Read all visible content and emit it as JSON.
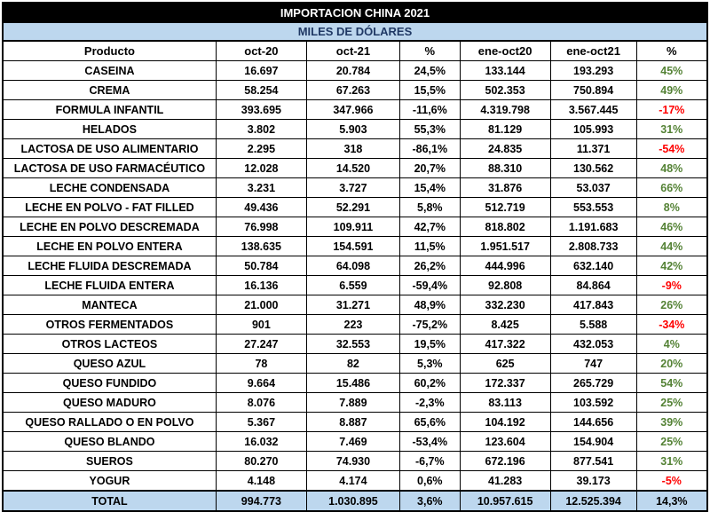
{
  "title": "IMPORTACION CHINA 2021",
  "subtitle": "MILES DE DÓLARES",
  "colors": {
    "title_bg": "#000000",
    "title_text": "#FFFFFF",
    "subtitle_bg": "#BDD7EE",
    "total_bg": "#BDD7EE",
    "positive_pct": "#548235",
    "negative_pct": "#FF0000"
  },
  "chart_data": {
    "type": "table",
    "title": "IMPORTACION CHINA 2021",
    "subtitle": "MILES DE DÓLARES",
    "columns": [
      "Producto",
      "oct-20",
      "oct-21",
      "%",
      "ene-oct20",
      "ene-oct21",
      "%"
    ],
    "rows": [
      [
        "CASEINA",
        "16.697",
        "20.784",
        "24,5%",
        "133.144",
        "193.293",
        "45%"
      ],
      [
        "CREMA",
        "58.254",
        "67.263",
        "15,5%",
        "502.353",
        "750.894",
        "49%"
      ],
      [
        "FORMULA INFANTIL",
        "393.695",
        "347.966",
        "-11,6%",
        "4.319.798",
        "3.567.445",
        "-17%"
      ],
      [
        "HELADOS",
        "3.802",
        "5.903",
        "55,3%",
        "81.129",
        "105.993",
        "31%"
      ],
      [
        "LACTOSA DE USO ALIMENTARIO",
        "2.295",
        "318",
        "-86,1%",
        "24.835",
        "11.371",
        "-54%"
      ],
      [
        "LACTOSA DE USO FARMACÉUTICO",
        "12.028",
        "14.520",
        "20,7%",
        "88.310",
        "130.562",
        "48%"
      ],
      [
        "LECHE CONDENSADA",
        "3.231",
        "3.727",
        "15,4%",
        "31.876",
        "53.037",
        "66%"
      ],
      [
        "LECHE EN POLVO - FAT FILLED",
        "49.436",
        "52.291",
        "5,8%",
        "512.719",
        "553.553",
        "8%"
      ],
      [
        "LECHE EN POLVO DESCREMADA",
        "76.998",
        "109.911",
        "42,7%",
        "818.802",
        "1.191.683",
        "46%"
      ],
      [
        "LECHE EN POLVO ENTERA",
        "138.635",
        "154.591",
        "11,5%",
        "1.951.517",
        "2.808.733",
        "44%"
      ],
      [
        "LECHE FLUIDA DESCREMADA",
        "50.784",
        "64.098",
        "26,2%",
        "444.996",
        "632.140",
        "42%"
      ],
      [
        "LECHE FLUIDA ENTERA",
        "16.136",
        "6.559",
        "-59,4%",
        "92.808",
        "84.864",
        "-9%"
      ],
      [
        "MANTECA",
        "21.000",
        "31.271",
        "48,9%",
        "332.230",
        "417.843",
        "26%"
      ],
      [
        "OTROS FERMENTADOS",
        "901",
        "223",
        "-75,2%",
        "8.425",
        "5.588",
        "-34%"
      ],
      [
        "OTROS LACTEOS",
        "27.247",
        "32.553",
        "19,5%",
        "417.322",
        "432.053",
        "4%"
      ],
      [
        "QUESO AZUL",
        "78",
        "82",
        "5,3%",
        "625",
        "747",
        "20%"
      ],
      [
        "QUESO FUNDIDO",
        "9.664",
        "15.486",
        "60,2%",
        "172.337",
        "265.729",
        "54%"
      ],
      [
        "QUESO MADURO",
        "8.076",
        "7.889",
        "-2,3%",
        "83.113",
        "103.592",
        "25%"
      ],
      [
        "QUESO RALLADO O EN POLVO",
        "5.367",
        "8.887",
        "65,6%",
        "104.192",
        "144.656",
        "39%"
      ],
      [
        "QUESO BLANDO",
        "16.032",
        "7.469",
        "-53,4%",
        "123.604",
        "154.904",
        "25%"
      ],
      [
        "SUEROS",
        "80.270",
        "74.930",
        "-6,7%",
        "672.196",
        "877.541",
        "31%"
      ],
      [
        "YOGUR",
        "4.148",
        "4.174",
        "0,6%",
        "41.283",
        "39.173",
        "-5%"
      ]
    ],
    "total_row": [
      "TOTAL",
      "994.773",
      "1.030.895",
      "3,6%",
      "10.957.615",
      "12.525.394",
      "14,3%"
    ]
  }
}
